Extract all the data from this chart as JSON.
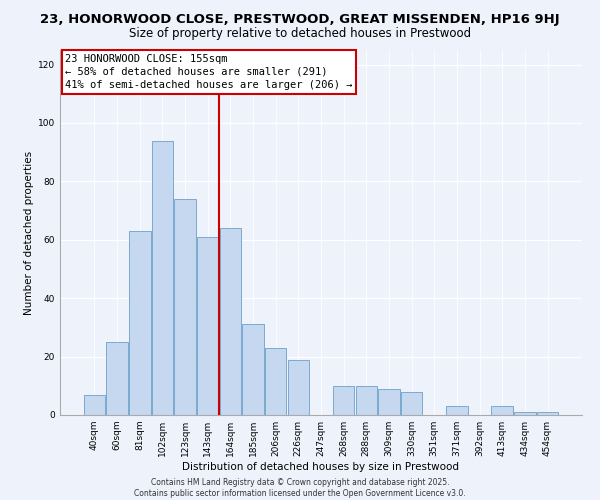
{
  "title_line1": "23, HONORWOOD CLOSE, PRESTWOOD, GREAT MISSENDEN, HP16 9HJ",
  "title_line2": "Size of property relative to detached houses in Prestwood",
  "xlabel": "Distribution of detached houses by size in Prestwood",
  "ylabel": "Number of detached properties",
  "bar_labels": [
    "40sqm",
    "60sqm",
    "81sqm",
    "102sqm",
    "123sqm",
    "143sqm",
    "164sqm",
    "185sqm",
    "206sqm",
    "226sqm",
    "247sqm",
    "268sqm",
    "288sqm",
    "309sqm",
    "330sqm",
    "351sqm",
    "371sqm",
    "392sqm",
    "413sqm",
    "434sqm",
    "454sqm"
  ],
  "bar_heights": [
    7,
    25,
    63,
    94,
    74,
    61,
    64,
    31,
    23,
    19,
    0,
    10,
    10,
    9,
    8,
    0,
    3,
    0,
    3,
    1,
    1
  ],
  "bar_color": "#c5d8f0",
  "bar_edgecolor": "#7aaad0",
  "vline_x": 5.5,
  "vline_color": "#cc0000",
  "annotation_text": "23 HONORWOOD CLOSE: 155sqm\n← 58% of detached houses are smaller (291)\n41% of semi-detached houses are larger (206) →",
  "annotation_box_color": "#ffffff",
  "annotation_box_edgecolor": "#cc0000",
  "ylim": [
    0,
    125
  ],
  "yticks": [
    0,
    20,
    40,
    60,
    80,
    100,
    120
  ],
  "background_color": "#eef2fb",
  "footer_line1": "Contains HM Land Registry data © Crown copyright and database right 2025.",
  "footer_line2": "Contains public sector information licensed under the Open Government Licence v3.0.",
  "title_fontsize": 9.5,
  "subtitle_fontsize": 8.5,
  "axis_label_fontsize": 7.5,
  "tick_fontsize": 6.5,
  "annotation_fontsize": 7.5,
  "footer_fontsize": 5.5
}
